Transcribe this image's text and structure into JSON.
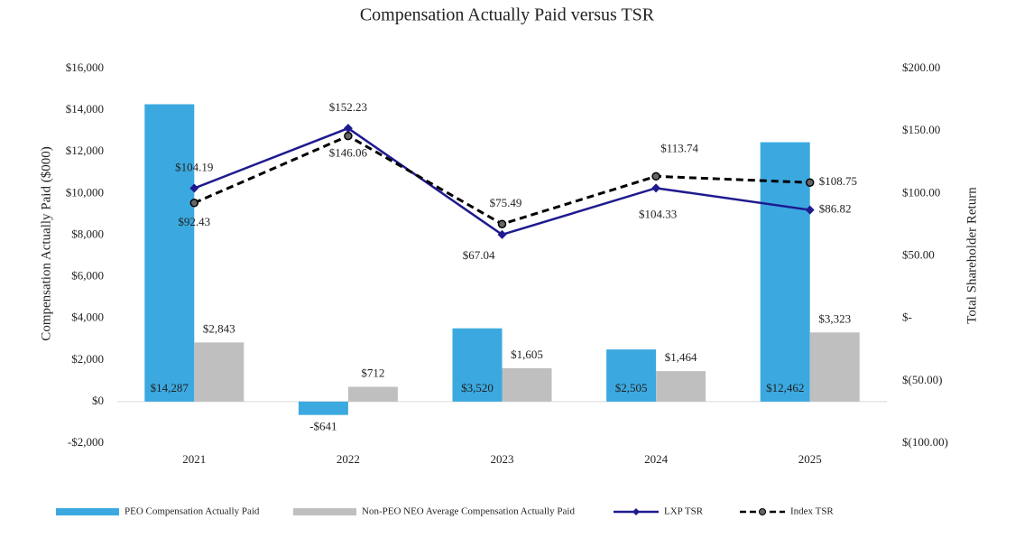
{
  "chart_data": {
    "type": "bar",
    "title": "Compensation Actually Paid versus TSR",
    "y_label": "Compensation Actually Paid ($000)",
    "y2_label": "Total Shareholder Return",
    "categories": [
      "2021",
      "2022",
      "2023",
      "2024",
      "2025"
    ],
    "ylim": [
      -2000,
      16000
    ],
    "yticks": [
      {
        "value": -2000,
        "label": "-$2,000"
      },
      {
        "value": 0,
        "label": "$0"
      },
      {
        "value": 2000,
        "label": "$2,000"
      },
      {
        "value": 4000,
        "label": "$4,000"
      },
      {
        "value": 6000,
        "label": "$6,000"
      },
      {
        "value": 8000,
        "label": "$8,000"
      },
      {
        "value": 10000,
        "label": "$10,000"
      },
      {
        "value": 12000,
        "label": "$12,000"
      },
      {
        "value": 14000,
        "label": "$14,000"
      },
      {
        "value": 16000,
        "label": "$16,000"
      }
    ],
    "y2lim": [
      -100,
      200
    ],
    "y2ticks": [
      {
        "value": -100,
        "label": "$(100.00)"
      },
      {
        "value": -50,
        "label": "$(50.00)"
      },
      {
        "value": 0,
        "label": "$-"
      },
      {
        "value": 50,
        "label": "$50.00"
      },
      {
        "value": 100,
        "label": "$100.00"
      },
      {
        "value": 150,
        "label": "$150.00"
      },
      {
        "value": 200,
        "label": "$200.00"
      }
    ],
    "grid": false,
    "legend": "bottom",
    "series": [
      {
        "name": "PEO Compensation Actually Paid",
        "type": "bar",
        "color": "#3ba9e0",
        "values": [
          14287,
          -641,
          3520,
          2505,
          12462
        ],
        "value_labels": [
          "$14,287",
          "-$641",
          "$3,520",
          "$2,505",
          "$12,462"
        ]
      },
      {
        "name": "Non-PEO NEO Average Compensation Actually Paid",
        "type": "bar",
        "color": "#bfbfbf",
        "values": [
          2843,
          712,
          1605,
          1464,
          3323
        ],
        "value_labels": [
          "$2,843",
          "$712",
          "$1,605",
          "$1,464",
          "$3,323"
        ]
      },
      {
        "name": "LXP TSR",
        "type": "line",
        "axis": "y2",
        "color": "#1f1a8f",
        "marker": "diamond",
        "values": [
          104.19,
          152.23,
          67.04,
          104.33,
          86.82
        ],
        "value_labels": [
          "$104.19",
          "$152.23",
          "$67.04",
          "$104.33",
          "$86.82"
        ]
      },
      {
        "name": "Index TSR",
        "type": "line",
        "axis": "y2",
        "color": "#000000",
        "dashed": true,
        "marker": "circle",
        "values": [
          92.43,
          146.06,
          75.49,
          113.74,
          108.75
        ],
        "value_labels": [
          "$92.43",
          "$146.06",
          "$75.49",
          "$113.74",
          "$108.75"
        ]
      }
    ]
  }
}
